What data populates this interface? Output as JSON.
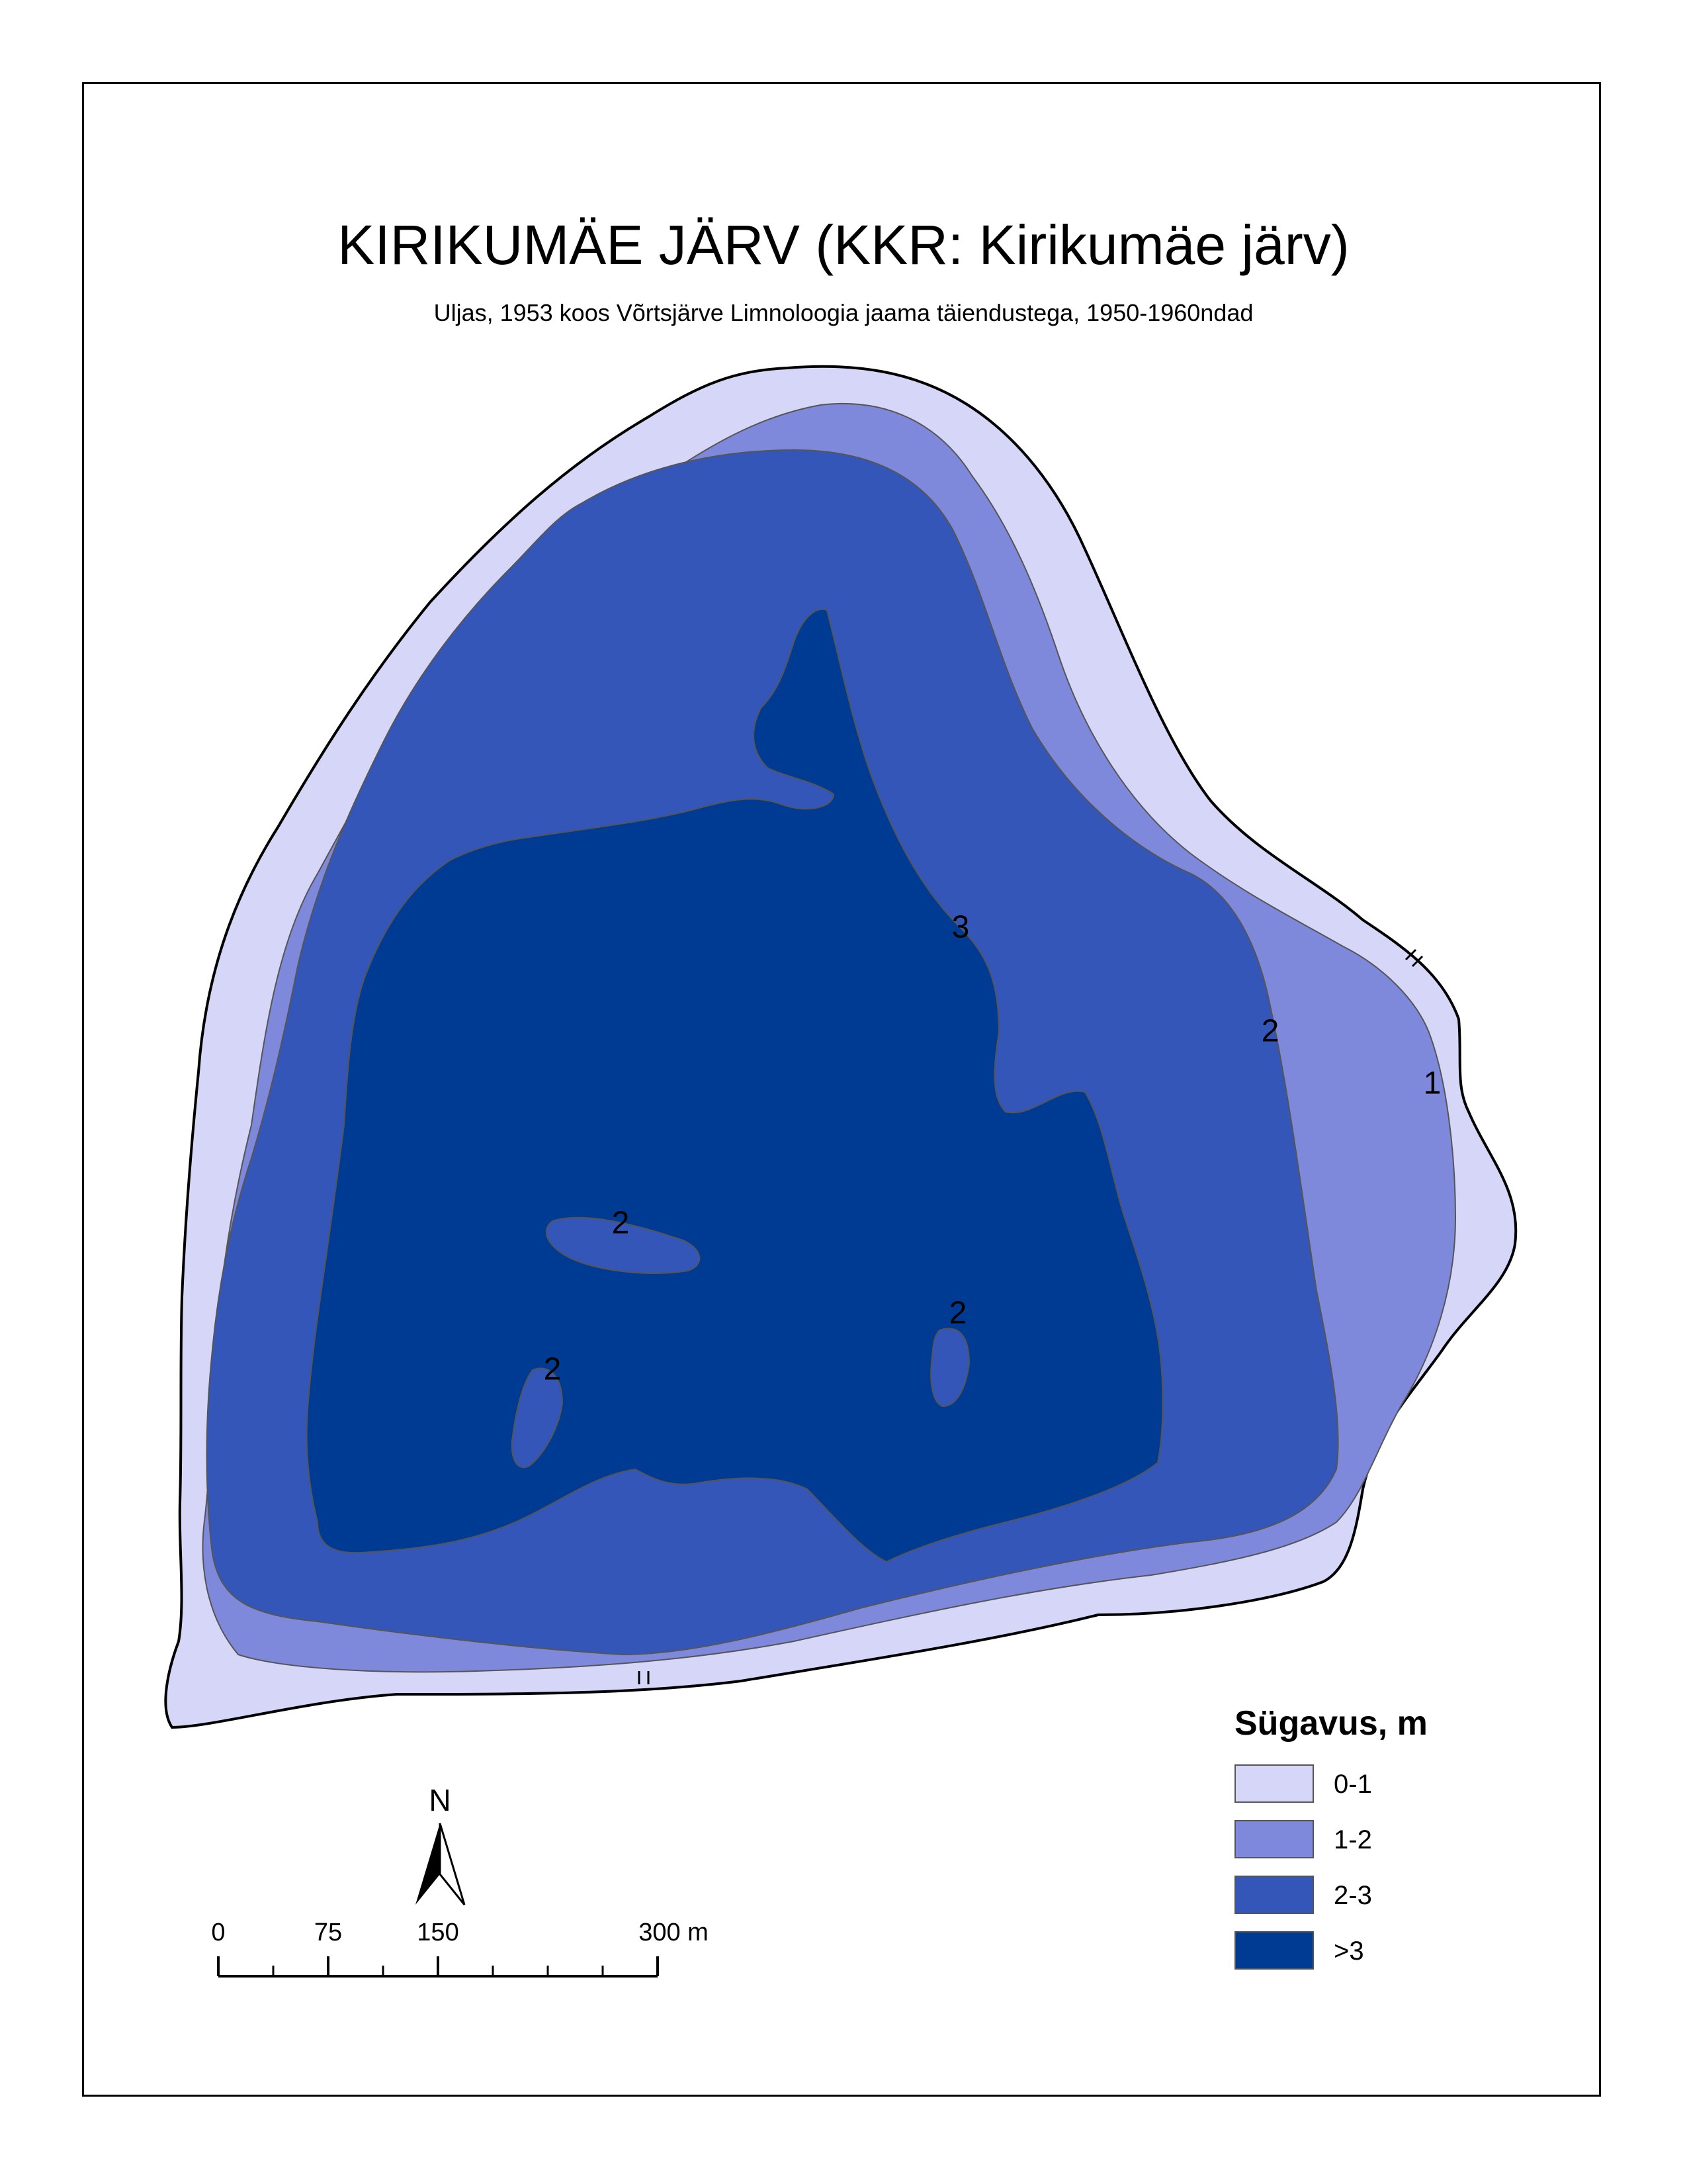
{
  "map": {
    "title": "KIRIKUMÄE JÄRV (KKR: Kirikumäe järv)",
    "subtitle": "Uljas, 1953 koos Võrtsjärve Limnoloogia jaama täiendustega, 1950-1960ndad"
  },
  "colors": {
    "depth_0_1": "#d6d6f8",
    "depth_1_2": "#7f89dc",
    "depth_2_3": "#3456b8",
    "depth_gt_3": "#003b93",
    "shoreline": "#000000"
  },
  "contour_labels": [
    "3",
    "2",
    "1",
    "2",
    "2",
    "2"
  ],
  "legend": {
    "title": "Sügavus, m",
    "items": [
      {
        "label": "0-1",
        "color": "#d6d6f8"
      },
      {
        "label": "1-2",
        "color": "#7f89dc"
      },
      {
        "label": "2-3",
        "color": "#3456b8"
      },
      {
        "label": ">3",
        "color": "#003b93"
      }
    ]
  },
  "north_arrow": {
    "label": "N"
  },
  "scale_bar": {
    "labels": [
      "0",
      "75",
      "150",
      "300 m"
    ]
  }
}
